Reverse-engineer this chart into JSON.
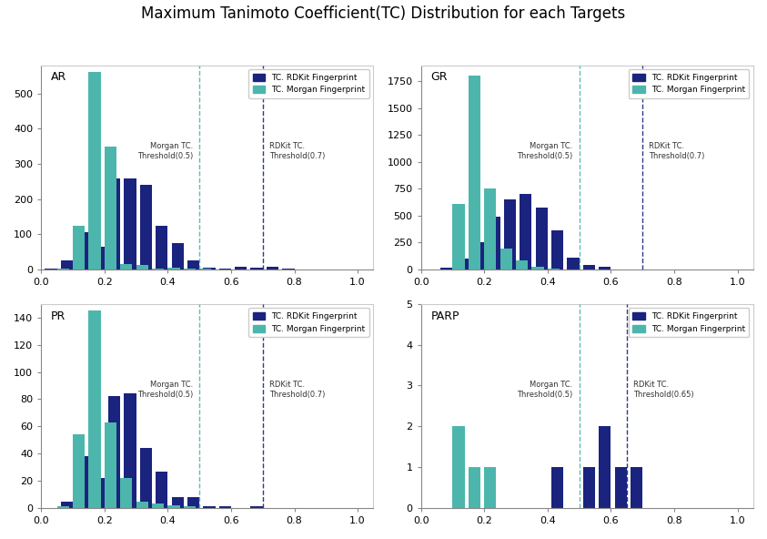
{
  "title": "Maximum Tanimoto Coefficient(TC) Distribution for each Targets",
  "title_fontsize": 12,
  "subplots": [
    {
      "label": "AR",
      "bins": [
        0.05,
        0.1,
        0.15,
        0.2,
        0.25,
        0.3,
        0.35,
        0.4,
        0.45,
        0.5,
        0.55,
        0.6,
        0.65,
        0.7,
        0.75,
        0.8,
        0.85,
        0.9,
        0.95
      ],
      "rdkit_vals": [
        2,
        25,
        105,
        65,
        258,
        258,
        240,
        125,
        75,
        25,
        5,
        2,
        8,
        5,
        8,
        2,
        0,
        0,
        0
      ],
      "morgan_vals": [
        2,
        125,
        560,
        350,
        15,
        12,
        2,
        5,
        2,
        1,
        0,
        0,
        0,
        0,
        0,
        0,
        0,
        0,
        0
      ],
      "morgan_threshold": 0.5,
      "rdkit_threshold": 0.7,
      "ylim": [
        0,
        580
      ],
      "yticks": [
        0,
        100,
        200,
        300,
        400,
        500
      ]
    },
    {
      "label": "GR",
      "bins": [
        0.05,
        0.1,
        0.15,
        0.2,
        0.25,
        0.3,
        0.35,
        0.4,
        0.45,
        0.5,
        0.55,
        0.6,
        0.65,
        0.7,
        0.75,
        0.8,
        0.85,
        0.9,
        0.95
      ],
      "rdkit_vals": [
        2,
        15,
        100,
        250,
        490,
        655,
        705,
        575,
        365,
        105,
        45,
        20,
        2,
        2,
        0,
        0,
        0,
        0,
        0
      ],
      "morgan_vals": [
        2,
        610,
        1800,
        755,
        195,
        85,
        20,
        5,
        2,
        1,
        0,
        0,
        0,
        0,
        0,
        0,
        0,
        0,
        0
      ],
      "morgan_threshold": 0.5,
      "rdkit_threshold": 0.7,
      "ylim": [
        0,
        1900
      ],
      "yticks": [
        0,
        250,
        500,
        750,
        1000,
        1250,
        1500,
        1750
      ]
    },
    {
      "label": "PR",
      "bins": [
        0.05,
        0.1,
        0.15,
        0.2,
        0.25,
        0.3,
        0.35,
        0.4,
        0.45,
        0.5,
        0.55,
        0.6,
        0.65,
        0.7,
        0.75,
        0.8,
        0.85,
        0.9,
        0.95
      ],
      "rdkit_vals": [
        0,
        5,
        38,
        22,
        82,
        84,
        44,
        27,
        8,
        8,
        1,
        1,
        0,
        1,
        0,
        0,
        0,
        0,
        0
      ],
      "morgan_vals": [
        1,
        54,
        145,
        63,
        22,
        5,
        3,
        2,
        1,
        0,
        0,
        0,
        0,
        0,
        0,
        0,
        0,
        0,
        0
      ],
      "morgan_threshold": 0.5,
      "rdkit_threshold": 0.7,
      "ylim": [
        0,
        150
      ],
      "yticks": [
        0,
        20,
        40,
        60,
        80,
        100,
        120,
        140
      ]
    },
    {
      "label": "PARP",
      "bins": [
        0.05,
        0.1,
        0.15,
        0.2,
        0.25,
        0.3,
        0.35,
        0.4,
        0.45,
        0.5,
        0.55,
        0.6,
        0.65,
        0.7,
        0.75,
        0.8,
        0.85,
        0.9,
        0.95
      ],
      "rdkit_vals": [
        0,
        0,
        0,
        0,
        0,
        0,
        0,
        0,
        1,
        0,
        1,
        2,
        1,
        1,
        0,
        0,
        0,
        0,
        0
      ],
      "morgan_vals": [
        0,
        2,
        1,
        1,
        0,
        0,
        0,
        0,
        0,
        0,
        0,
        0,
        0,
        0,
        0,
        0,
        0,
        0,
        0
      ],
      "morgan_threshold": 0.5,
      "rdkit_threshold": 0.65,
      "ylim": [
        0,
        5
      ],
      "yticks": [
        0,
        1,
        2,
        3,
        4,
        5
      ]
    }
  ],
  "rdkit_color": "#1a237e",
  "morgan_color": "#4db6ac",
  "xlim": [
    0.0,
    1.05
  ],
  "xticks": [
    0.0,
    0.2,
    0.4,
    0.6,
    0.8,
    1.0
  ],
  "legend_rdkit": "TC. RDKit Fingerprint",
  "legend_morgan": "TC. Morgan Fingerprint"
}
